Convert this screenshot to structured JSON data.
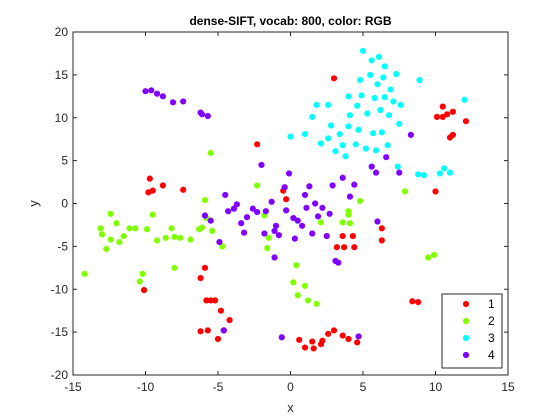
{
  "chart_data": {
    "type": "scatter",
    "title": "dense-SIFT, vocab: 800, color: RGB",
    "xlabel": "x",
    "ylabel": "y",
    "xlim": [
      -15,
      15
    ],
    "ylim": [
      -20,
      20
    ],
    "xticks": [
      "-15",
      "-10",
      "-5",
      "0",
      "5",
      "10",
      "15"
    ],
    "yticks": [
      "-20",
      "-15",
      "-10",
      "-5",
      "0",
      "5",
      "10",
      "15",
      "20"
    ],
    "grid": false,
    "legend_position": "bottom-right",
    "series": [
      {
        "name": "1",
        "color": "#ff0000",
        "points": [
          [
            -10.1,
            -10.1
          ],
          [
            -9.7,
            2.9
          ],
          [
            -9.8,
            1.3
          ],
          [
            -9.5,
            1.5
          ],
          [
            -8.8,
            2.1
          ],
          [
            -7.4,
            1.6
          ],
          [
            -6.2,
            -8.7
          ],
          [
            -5.9,
            -7.5
          ],
          [
            -5.8,
            -11.3
          ],
          [
            -5.5,
            -11.3
          ],
          [
            -5.2,
            -11.3
          ],
          [
            -4.8,
            -12.5
          ],
          [
            -4.6,
            -14.8
          ],
          [
            -5.0,
            -15.8
          ],
          [
            -5.7,
            -14.8
          ],
          [
            -6.2,
            -14.9
          ],
          [
            -4.2,
            -13.6
          ],
          [
            -2.3,
            6.9
          ],
          [
            -0.5,
            1.5
          ],
          [
            -0.3,
            0.5
          ],
          [
            0.6,
            -15.9
          ],
          [
            1.0,
            -16.8
          ],
          [
            1.5,
            -16.1
          ],
          [
            1.6,
            -16.9
          ],
          [
            2.1,
            -16.4
          ],
          [
            2.6,
            -15.2
          ],
          [
            3.0,
            -14.8
          ],
          [
            3.6,
            -15.4
          ],
          [
            4.0,
            -15.8
          ],
          [
            4.6,
            -16.2
          ],
          [
            3.0,
            14.6
          ],
          [
            3.2,
            -5.1
          ],
          [
            3.7,
            -5.1
          ],
          [
            3.6,
            -3.8
          ],
          [
            4.3,
            -3.8
          ],
          [
            4.4,
            -5.1
          ],
          [
            6.3,
            -2.9
          ],
          [
            6.3,
            -4.3
          ],
          [
            10.0,
            1.4
          ],
          [
            10.1,
            10.1
          ],
          [
            10.5,
            11.3
          ],
          [
            10.8,
            10.4
          ],
          [
            10.5,
            10.1
          ],
          [
            11.0,
            7.7
          ],
          [
            11.2,
            8.0
          ],
          [
            11.2,
            10.7
          ],
          [
            12.1,
            9.6
          ],
          [
            8.4,
            -11.4
          ],
          [
            8.8,
            -11.5
          ],
          [
            2.2,
            -16.0
          ]
        ]
      },
      {
        "name": "2",
        "color": "#80ff00",
        "points": [
          [
            -14.2,
            -8.2
          ],
          [
            -13.1,
            -2.9
          ],
          [
            -13.0,
            -3.6
          ],
          [
            -12.7,
            -5.3
          ],
          [
            -12.4,
            -1.2
          ],
          [
            -12.4,
            -4.2
          ],
          [
            -12.0,
            -2.3
          ],
          [
            -11.8,
            -4.5
          ],
          [
            -11.5,
            -3.8
          ],
          [
            -11.1,
            -2.9
          ],
          [
            -10.7,
            -2.9
          ],
          [
            -10.4,
            -9.1
          ],
          [
            -10.2,
            -8.2
          ],
          [
            -9.9,
            -3.0
          ],
          [
            -9.5,
            -1.3
          ],
          [
            -9.2,
            -4.3
          ],
          [
            -8.6,
            -4.0
          ],
          [
            -8.2,
            -2.9
          ],
          [
            -8.0,
            -3.9
          ],
          [
            -8.0,
            -7.5
          ],
          [
            -7.6,
            -4.0
          ],
          [
            -6.9,
            -4.2
          ],
          [
            -6.3,
            -3.0
          ],
          [
            -6.1,
            -2.8
          ],
          [
            -5.9,
            0.4
          ],
          [
            -5.8,
            -1.7
          ],
          [
            -5.5,
            5.9
          ],
          [
            -5.4,
            -3.2
          ],
          [
            -4.7,
            -5.0
          ],
          [
            -2.3,
            2.1
          ],
          [
            -1.8,
            -1.4
          ],
          [
            -1.6,
            -5.2
          ],
          [
            0.2,
            -9.2
          ],
          [
            0.4,
            -7.2
          ],
          [
            0.5,
            -10.7
          ],
          [
            1.0,
            -9.6
          ],
          [
            1.2,
            -11.3
          ],
          [
            1.8,
            -11.7
          ],
          [
            2.1,
            -2.2
          ],
          [
            3.6,
            -2.2
          ],
          [
            4.0,
            -0.9
          ],
          [
            4.0,
            -1.3
          ],
          [
            4.8,
            0.3
          ],
          [
            7.9,
            1.4
          ],
          [
            9.5,
            -6.3
          ],
          [
            9.9,
            -6.0
          ],
          [
            -1.5,
            -4.0
          ],
          [
            4.1,
            -2.3
          ]
        ]
      },
      {
        "name": "3",
        "color": "#00ffff",
        "points": [
          [
            0.0,
            7.8
          ],
          [
            1.0,
            8.1
          ],
          [
            1.5,
            10.1
          ],
          [
            1.8,
            11.5
          ],
          [
            2.1,
            7.0
          ],
          [
            2.6,
            7.6
          ],
          [
            2.6,
            11.5
          ],
          [
            2.8,
            9.1
          ],
          [
            3.1,
            6.1
          ],
          [
            3.4,
            8.1
          ],
          [
            3.6,
            6.8
          ],
          [
            3.8,
            5.5
          ],
          [
            4.0,
            9.0
          ],
          [
            4.0,
            12.5
          ],
          [
            4.1,
            10.3
          ],
          [
            4.5,
            6.9
          ],
          [
            4.6,
            11.4
          ],
          [
            4.7,
            8.6
          ],
          [
            4.8,
            14.4
          ],
          [
            4.9,
            12.6
          ],
          [
            5.0,
            17.8
          ],
          [
            5.2,
            6.4
          ],
          [
            5.3,
            10.5
          ],
          [
            5.5,
            15.0
          ],
          [
            5.6,
            16.7
          ],
          [
            5.7,
            8.2
          ],
          [
            5.8,
            12.3
          ],
          [
            5.9,
            6.2
          ],
          [
            6.0,
            13.9
          ],
          [
            6.1,
            17.1
          ],
          [
            6.2,
            10.9
          ],
          [
            6.3,
            8.3
          ],
          [
            6.4,
            14.7
          ],
          [
            6.5,
            12.4
          ],
          [
            6.5,
            16.0
          ],
          [
            6.7,
            6.8
          ],
          [
            6.8,
            10.3
          ],
          [
            6.9,
            13.3
          ],
          [
            7.1,
            11.9
          ],
          [
            7.3,
            15.1
          ],
          [
            7.4,
            4.3
          ],
          [
            7.5,
            9.3
          ],
          [
            7.6,
            11.5
          ],
          [
            8.8,
            3.4
          ],
          [
            8.9,
            14.4
          ],
          [
            9.2,
            3.3
          ],
          [
            10.3,
            3.5
          ],
          [
            10.6,
            4.1
          ],
          [
            11.0,
            3.6
          ],
          [
            12.0,
            12.1
          ]
        ]
      },
      {
        "name": "4",
        "color": "#8000ff",
        "points": [
          [
            -10.0,
            13.1
          ],
          [
            -9.6,
            13.2
          ],
          [
            -9.2,
            12.8
          ],
          [
            -8.8,
            12.5
          ],
          [
            -8.1,
            11.8
          ],
          [
            -7.4,
            11.9
          ],
          [
            -6.2,
            10.6
          ],
          [
            -6.1,
            10.4
          ],
          [
            -5.7,
            10.2
          ],
          [
            -5.9,
            -1.4
          ],
          [
            -5.5,
            -2.0
          ],
          [
            -4.9,
            -4.5
          ],
          [
            -4.5,
            1.0
          ],
          [
            -4.3,
            -0.9
          ],
          [
            -3.9,
            -0.6
          ],
          [
            -3.7,
            -0.1
          ],
          [
            -3.4,
            -2.3
          ],
          [
            -3.2,
            -3.4
          ],
          [
            -3.0,
            -1.6
          ],
          [
            -2.6,
            -0.6
          ],
          [
            -2.3,
            -1.0
          ],
          [
            -2.0,
            4.5
          ],
          [
            -1.8,
            -3.5
          ],
          [
            -1.7,
            -0.9
          ],
          [
            -1.3,
            0.2
          ],
          [
            -1.1,
            -3.2
          ],
          [
            -1.1,
            -6.3
          ],
          [
            -1.0,
            -2.6
          ],
          [
            -0.8,
            -3.7
          ],
          [
            -0.6,
            -15.6
          ],
          [
            -0.4,
            1.9
          ],
          [
            -0.3,
            -0.8
          ],
          [
            -0.1,
            3.5
          ],
          [
            0.2,
            -1.7
          ],
          [
            0.3,
            -4.1
          ],
          [
            0.5,
            -2.0
          ],
          [
            0.8,
            -2.6
          ],
          [
            1.0,
            1.0
          ],
          [
            1.1,
            -0.5
          ],
          [
            1.3,
            2.0
          ],
          [
            1.5,
            -3.5
          ],
          [
            1.7,
            0.0
          ],
          [
            1.9,
            -1.5
          ],
          [
            2.2,
            -0.5
          ],
          [
            2.5,
            -3.8
          ],
          [
            2.7,
            -1.2
          ],
          [
            2.9,
            2.1
          ],
          [
            3.1,
            -6.7
          ],
          [
            3.3,
            -6.9
          ],
          [
            3.6,
            3.0
          ],
          [
            4.1,
            0.8
          ],
          [
            4.4,
            2.2
          ],
          [
            4.7,
            -15.5
          ],
          [
            5.6,
            4.3
          ],
          [
            5.9,
            3.6
          ],
          [
            6.0,
            -2.1
          ],
          [
            6.6,
            5.4
          ],
          [
            7.5,
            3.6
          ],
          [
            8.3,
            8.0
          ],
          [
            -4.6,
            -14.8
          ]
        ]
      }
    ]
  }
}
